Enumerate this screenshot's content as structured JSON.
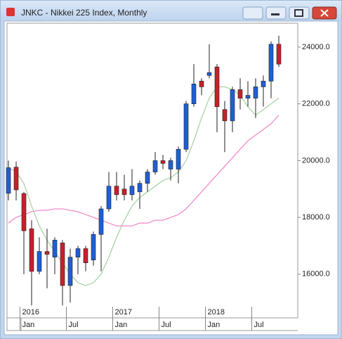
{
  "chart_data": {
    "type": "candlestick",
    "title": "JNKC - Nikkei 225 Index, Monthly",
    "categories": [
      null,
      null,
      "Jan",
      null,
      null,
      null,
      null,
      null,
      "Jul",
      null,
      null,
      null,
      null,
      null,
      "Jan",
      null,
      null,
      null,
      null,
      null,
      "Jul",
      null,
      null,
      null,
      null,
      null,
      "Jan",
      null,
      null,
      null,
      null,
      null,
      "Jul",
      null,
      null,
      null
    ],
    "year_labels": [
      "2016",
      "2017",
      "2018"
    ],
    "open": [
      18850,
      19770,
      18840,
      17600,
      16100,
      16800,
      16600,
      17100,
      15600,
      16600,
      16900,
      16500,
      17400,
      18300,
      19100,
      19000,
      18800,
      18900,
      19200,
      19600,
      20000,
      19700,
      19700,
      20400,
      22000,
      22800,
      23000,
      23300,
      21800,
      21400,
      22500,
      22200,
      22200,
      22600,
      22800,
      24100
    ],
    "high": [
      20000,
      19970,
      18900,
      17900,
      17300,
      17600,
      17300,
      17200,
      16900,
      17000,
      17000,
      17500,
      18400,
      19600,
      19600,
      19500,
      19700,
      19300,
      19700,
      20300,
      20200,
      20100,
      20500,
      22100,
      23400,
      22900,
      24100,
      23400,
      22100,
      22600,
      22900,
      22800,
      22900,
      23000,
      24200,
      24400
    ],
    "low": [
      18600,
      18600,
      16000,
      14900,
      16000,
      15500,
      16000,
      14900,
      15000,
      16000,
      16100,
      16300,
      16100,
      18200,
      18600,
      18600,
      18600,
      18300,
      18900,
      19500,
      19700,
      19300,
      19200,
      20300,
      21900,
      22300,
      22900,
      21000,
      20300,
      21000,
      21800,
      21900,
      21500,
      21900,
      22200,
      23300
    ],
    "close": [
      19750,
      18970,
      17530,
      16100,
      16800,
      16700,
      17200,
      15600,
      16600,
      16900,
      16400,
      17400,
      18300,
      19100,
      18800,
      18800,
      19100,
      19200,
      19600,
      20000,
      19900,
      20000,
      20400,
      22000,
      22700,
      22600,
      23100,
      21900,
      21400,
      22500,
      22200,
      22300,
      22600,
      22800,
      24100,
      23400
    ],
    "up_color": "#1f5fd6",
    "down_color": "#c8202a",
    "wick_color": "#222222",
    "lines": [
      {
        "color": "#a8d4a8",
        "values": [
          19750,
          19600,
          19200,
          18400,
          17700,
          17200,
          16800,
          16400,
          16000,
          15700,
          15600,
          15700,
          16000,
          16600,
          17300,
          17900,
          18400,
          18700,
          18900,
          19100,
          19300,
          19400,
          19600,
          20000,
          20700,
          21500,
          22200,
          22600,
          22600,
          22500,
          22300,
          21900,
          21600,
          21800,
          22000,
          22200
        ]
      },
      {
        "color": "#f08cc8",
        "values": [
          17800,
          18000,
          18100,
          18200,
          18250,
          18250,
          18300,
          18300,
          18250,
          18200,
          18100,
          18000,
          17900,
          17800,
          17700,
          17700,
          17700,
          17800,
          17800,
          17900,
          17900,
          18000,
          18100,
          18300,
          18600,
          18900,
          19200,
          19500,
          19800,
          20100,
          20400,
          20700,
          20900,
          21100,
          21300,
          21600
        ]
      }
    ],
    "ylim": [
      14460,
      24840
    ],
    "yticks": [
      {
        "value": 16000,
        "label": "16000.0"
      },
      {
        "value": 18000,
        "label": "18000.0"
      },
      {
        "value": 20000,
        "label": "20000.0"
      },
      {
        "value": 22000,
        "label": "22000.0"
      },
      {
        "value": 24000,
        "label": "24000.0"
      }
    ]
  }
}
